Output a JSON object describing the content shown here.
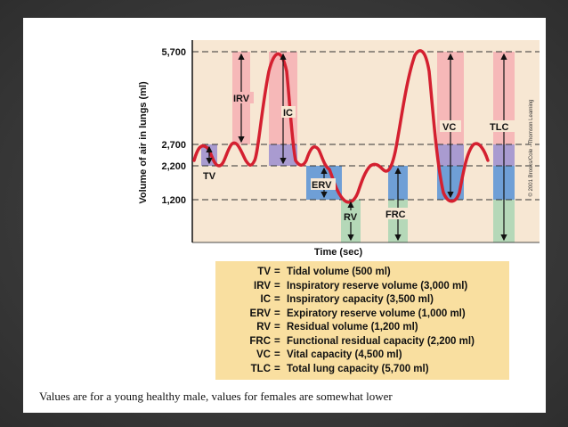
{
  "diagram": {
    "y_axis_label": "Volume of air in lungs (ml)",
    "x_axis_label": "Time (sec)",
    "copyright": "© 2001 Brooks/Cole - Thomson Learning",
    "y_ticks": [
      "5,700",
      "2,700",
      "2,200",
      "1,200"
    ],
    "region_labels": {
      "tv": "TV",
      "irv": "IRV",
      "ic": "IC",
      "erv": "ERV",
      "rv": "RV",
      "frc": "FRC",
      "vc": "VC",
      "tlc": "TLC"
    },
    "colors": {
      "background": "#f7e7d3",
      "trace": "#d42030",
      "irv_band": "#f6b8b8",
      "tv_band": "#a99bd0",
      "erv_band": "#6f9fd6",
      "rv_band": "#b5d8b8",
      "legend_bg": "#f9dfa0"
    }
  },
  "legend": [
    {
      "abbr": "TV",
      "desc": "Tidal volume (500 ml)"
    },
    {
      "abbr": "IRV",
      "desc": "Inspiratory reserve volume (3,000 ml)"
    },
    {
      "abbr": "IC",
      "desc": "Inspiratory capacity (3,500 ml)"
    },
    {
      "abbr": "ERV",
      "desc": "Expiratory reserve volume (1,000 ml)"
    },
    {
      "abbr": "RV",
      "desc": "Residual volume (1,200 ml)"
    },
    {
      "abbr": "FRC",
      "desc": "Functional residual capacity (2,200 ml)"
    },
    {
      "abbr": "VC",
      "desc": "Vital capacity (4,500 ml)"
    },
    {
      "abbr": "TLC",
      "desc": "Total lung capacity (5,700 ml)"
    }
  ],
  "footnote": "Values are for a young healthy male, values for females are somewhat lower"
}
